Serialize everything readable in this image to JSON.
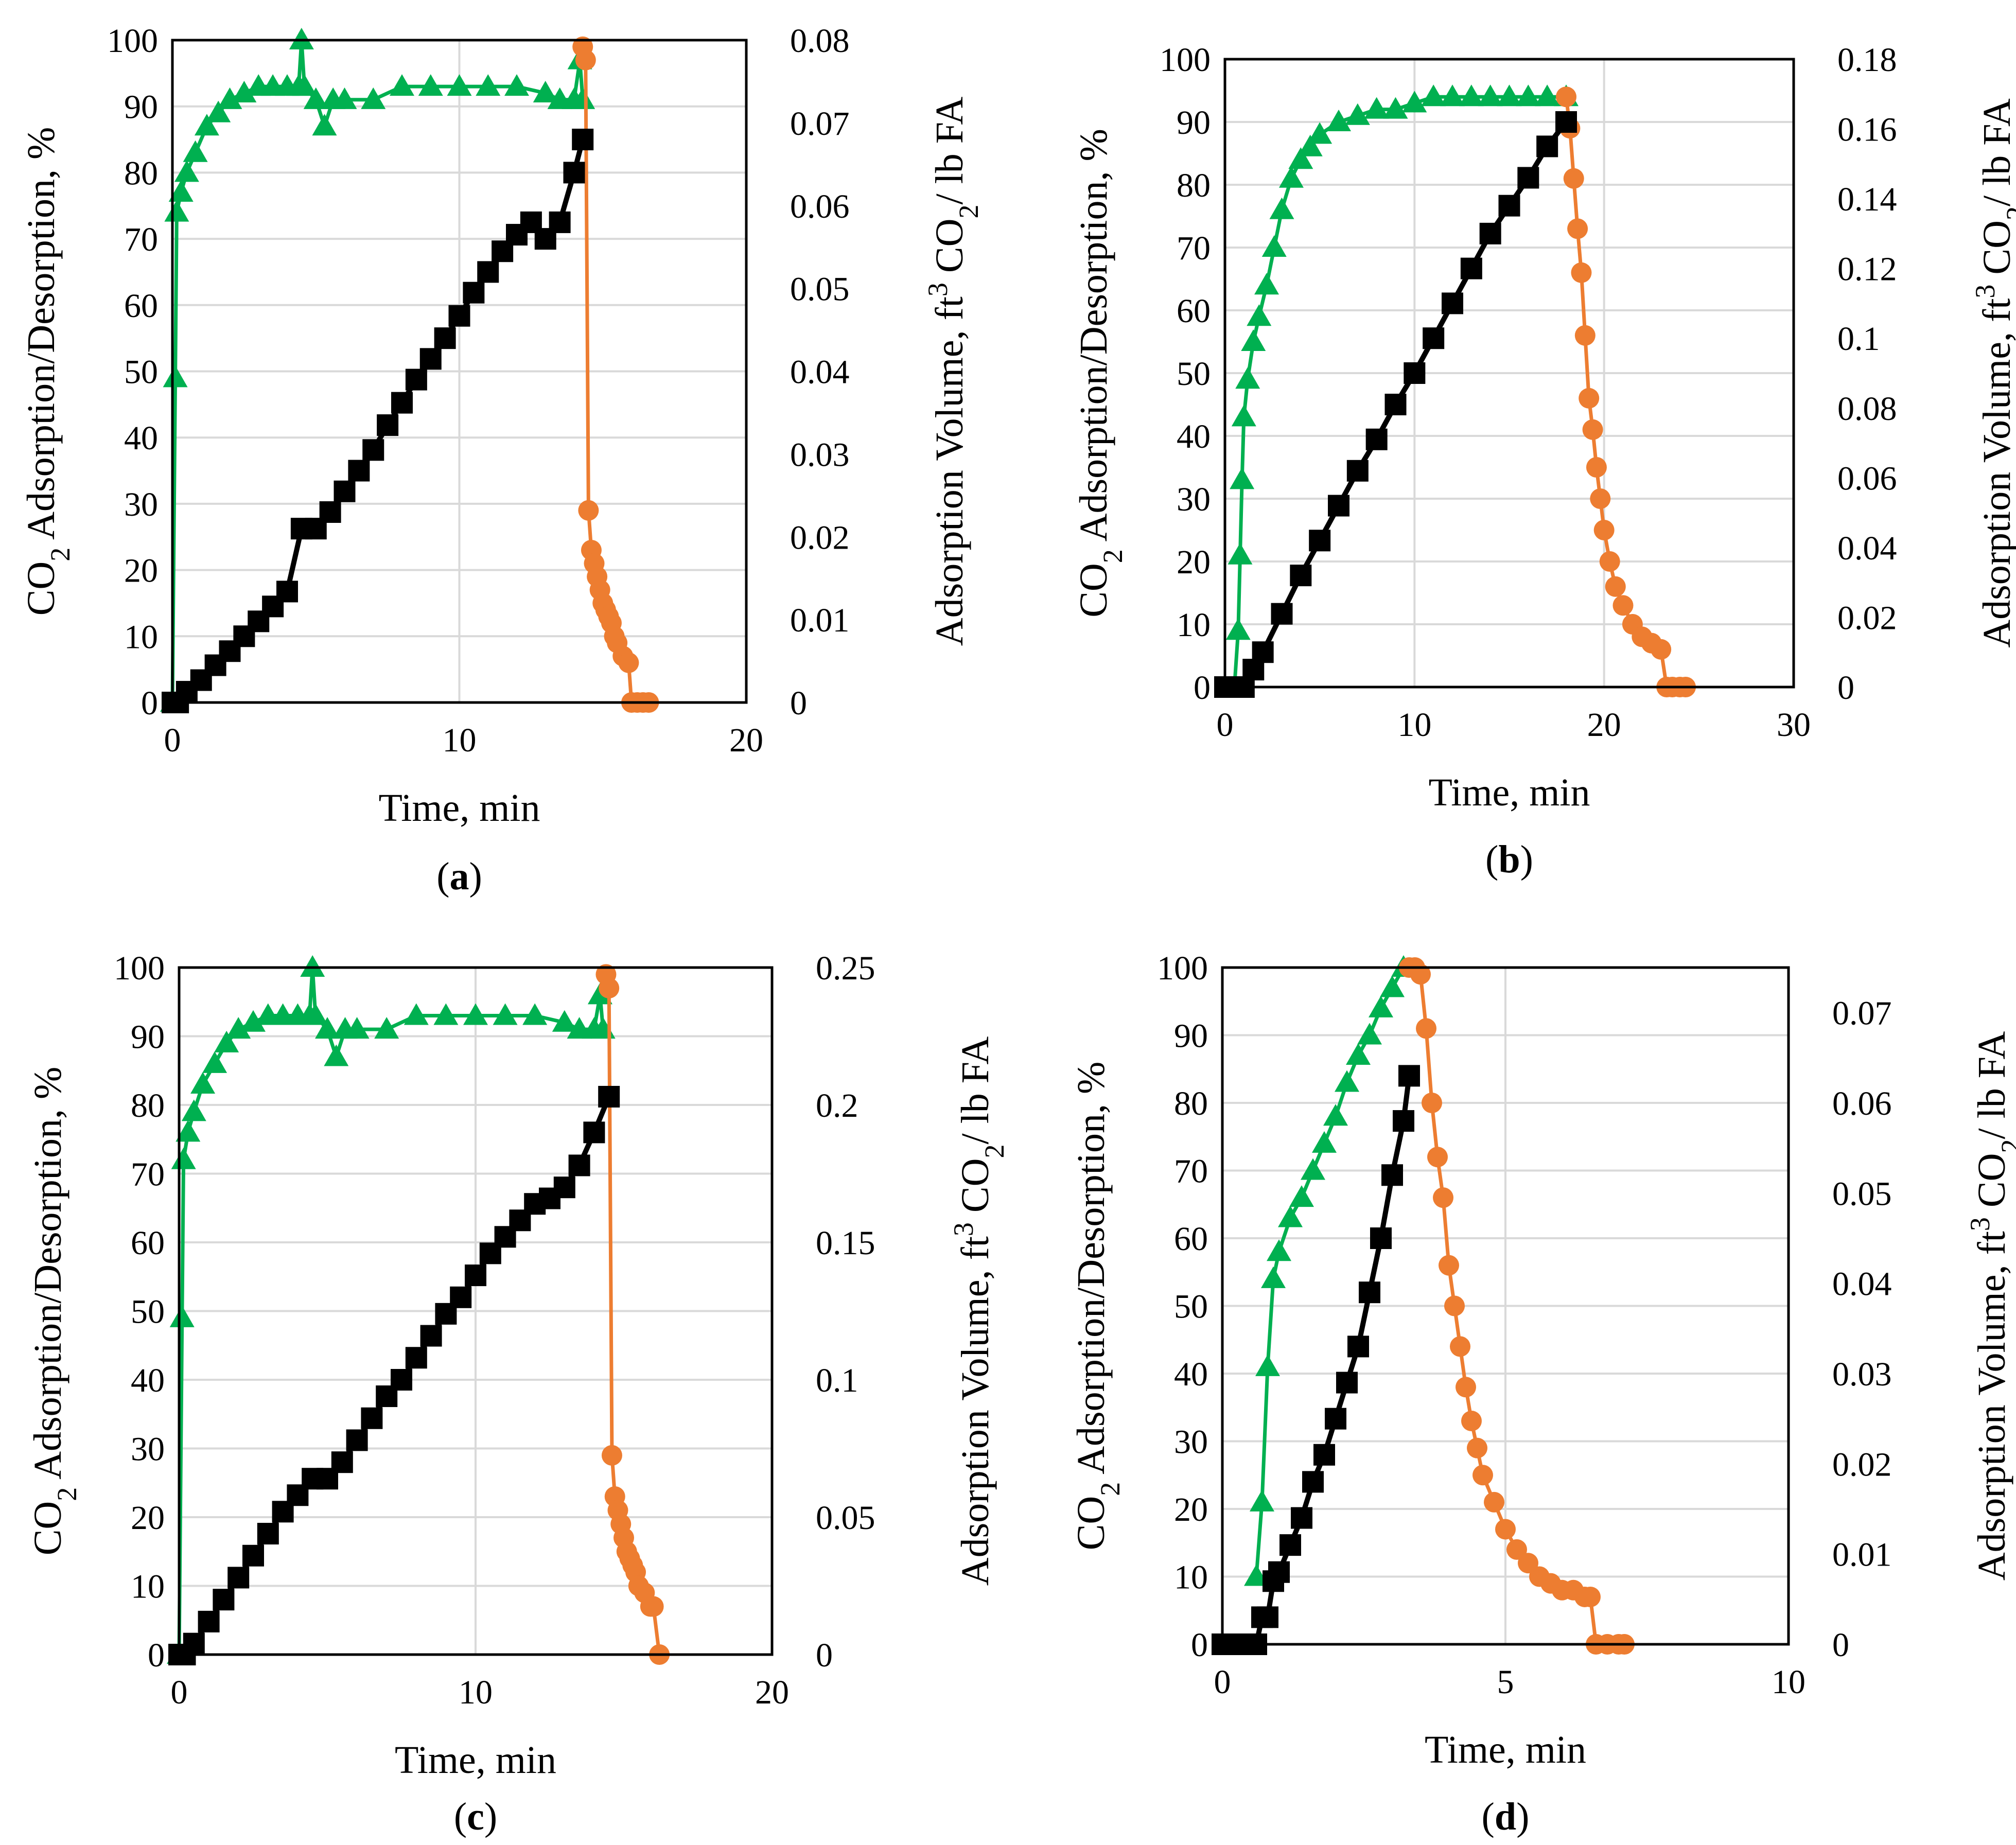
{
  "colors": {
    "adsorption": "#00b050",
    "desorption": "#ed7d31",
    "volume": "#000000",
    "grid": "#d9d9d9"
  },
  "chart_data": [
    {
      "panel": "a",
      "type": "line",
      "label_open": "(",
      "label_letter": "a",
      "label_close": ")",
      "xlabel": "Time, min",
      "ylabel_left": {
        "a": "CO",
        "sub": "2",
        "b": " Adsorption/Desorption, %"
      },
      "ylabel_right": {
        "a": "Adsorption Volume, ft",
        "sup": "3",
        "b": " CO",
        "sub": "2",
        "c": "/ lb FA"
      },
      "xlim": [
        0,
        20
      ],
      "xticks": [
        0,
        10,
        20
      ],
      "ylim_left": [
        0,
        100
      ],
      "yticks_left": [
        0,
        10,
        20,
        30,
        40,
        50,
        60,
        70,
        80,
        90,
        100
      ],
      "ylim_right": [
        0,
        0.08
      ],
      "yticks_right": [
        0,
        0.01,
        0.02,
        0.03,
        0.04,
        0.05,
        0.06,
        0.07,
        0.08
      ],
      "series": [
        {
          "name": "CO2 Adsorption, %",
          "axis": "left",
          "marker": "triangle",
          "x": [
            0,
            0.1,
            0.15,
            0.3,
            0.5,
            0.8,
            1.2,
            1.6,
            2,
            2.5,
            3,
            3.5,
            4,
            4.4,
            4.5,
            4.6,
            5,
            5.3,
            5.6,
            6,
            7,
            8,
            9,
            10,
            11,
            12,
            13,
            13.5,
            14,
            14.2,
            14.3
          ],
          "y": [
            0,
            49,
            74,
            77,
            80,
            83,
            87,
            89,
            91,
            92,
            93,
            93,
            93,
            93,
            100,
            93,
            91,
            87,
            91,
            91,
            91,
            93,
            93,
            93,
            93,
            93,
            92,
            91,
            91,
            97,
            91
          ]
        },
        {
          "name": "CO2 Desorption, %",
          "axis": "left",
          "marker": "circle",
          "x": [
            14.3,
            14.4,
            14.5,
            14.6,
            14.7,
            14.8,
            14.9,
            15,
            15.1,
            15.2,
            15.3,
            15.4,
            15.5,
            15.7,
            15.9,
            16,
            16.2,
            16.4,
            16.6
          ],
          "y": [
            99,
            97,
            29,
            23,
            21,
            19,
            17,
            15,
            14,
            13,
            12,
            10,
            9,
            7,
            6,
            0,
            0,
            0,
            0
          ]
        },
        {
          "name": "Adsorption Volume, ft3 CO2/lb FA",
          "axis": "right",
          "marker": "square",
          "x": [
            0,
            0.2,
            0.5,
            1,
            1.5,
            2,
            2.5,
            3,
            3.5,
            4,
            4.5,
            5,
            5.5,
            6,
            6.5,
            7,
            7.5,
            8,
            8.5,
            9,
            9.5,
            10,
            10.5,
            11,
            11.5,
            12,
            12.5,
            13,
            13.5,
            14,
            14.3
          ],
          "y": [
            0,
            0,
            0.0013,
            0.0027,
            0.0045,
            0.0062,
            0.008,
            0.0098,
            0.0116,
            0.0134,
            0.021,
            0.021,
            0.023,
            0.0255,
            0.028,
            0.0305,
            0.0335,
            0.0362,
            0.039,
            0.0415,
            0.044,
            0.0467,
            0.0495,
            0.052,
            0.0545,
            0.0565,
            0.058,
            0.056,
            0.058,
            0.064,
            0.068
          ]
        }
      ]
    },
    {
      "panel": "b",
      "type": "line",
      "label_open": "(",
      "label_letter": "b",
      "label_close": ")",
      "xlabel": "Time, min",
      "ylabel_left": {
        "a": "CO",
        "sub": "2",
        "b": " Adsorption/Desorption, %"
      },
      "ylabel_right": {
        "a": "Adsorption Volume, ft",
        "sup": "3",
        "b": " CO",
        "sub": "2",
        "c": "/ lb FA"
      },
      "xlim": [
        0,
        30
      ],
      "xticks": [
        0,
        10,
        20,
        30
      ],
      "ylim_left": [
        0,
        100
      ],
      "yticks_left": [
        0,
        10,
        20,
        30,
        40,
        50,
        60,
        70,
        80,
        90,
        100
      ],
      "ylim_right": [
        0,
        0.18
      ],
      "yticks_right": [
        0,
        0.02,
        0.04,
        0.06,
        0.08,
        0.1,
        0.12,
        0.14,
        0.16,
        0.18
      ],
      "series": [
        {
          "name": "CO2 Adsorption, %",
          "axis": "left",
          "marker": "triangle",
          "x": [
            0.5,
            0.7,
            0.8,
            0.9,
            1,
            1.2,
            1.5,
            1.8,
            2.2,
            2.6,
            3,
            3.5,
            4,
            4.5,
            5,
            6,
            7,
            8,
            9,
            10,
            11,
            12,
            13,
            14,
            15,
            16,
            17,
            18
          ],
          "y": [
            0,
            9,
            21,
            33,
            43,
            49,
            55,
            59,
            64,
            70,
            76,
            81,
            84,
            86,
            88,
            90,
            91,
            92,
            92,
            93,
            94,
            94,
            94,
            94,
            94,
            94,
            94,
            94
          ]
        },
        {
          "name": "CO2 Desorption, %",
          "axis": "left",
          "marker": "circle",
          "x": [
            18,
            18.2,
            18.4,
            18.6,
            18.8,
            19,
            19.2,
            19.4,
            19.6,
            19.8,
            20,
            20.3,
            20.6,
            21,
            21.5,
            22,
            22.5,
            23,
            23.3,
            23.6,
            24,
            24.3
          ],
          "y": [
            94,
            89,
            81,
            73,
            66,
            56,
            46,
            41,
            35,
            30,
            25,
            20,
            16,
            13,
            10,
            8,
            7,
            6,
            0,
            0,
            0,
            0
          ]
        },
        {
          "name": "Adsorption Volume, ft3 CO2/lb FA",
          "axis": "right",
          "marker": "square",
          "x": [
            0,
            0.5,
            1,
            1.5,
            2,
            3,
            4,
            5,
            6,
            7,
            8,
            9,
            10,
            11,
            12,
            13,
            14,
            15,
            16,
            17,
            18
          ],
          "y": [
            0,
            0,
            0,
            0.005,
            0.01,
            0.021,
            0.032,
            0.042,
            0.052,
            0.062,
            0.071,
            0.081,
            0.09,
            0.1,
            0.11,
            0.12,
            0.13,
            0.138,
            0.146,
            0.155,
            0.162
          ]
        }
      ]
    },
    {
      "panel": "c",
      "type": "line",
      "label_open": "(",
      "label_letter": "c",
      "label_close": ")",
      "xlabel": "Time, min",
      "ylabel_left": {
        "a": "CO",
        "sub": "2",
        "b": " Adsorption/Desorption, %"
      },
      "ylabel_right": {
        "a": "Adsorption Volume, ft",
        "sup": "3",
        "b": " CO",
        "sub": "2",
        "c": "/ lb FA"
      },
      "xlim": [
        0,
        20
      ],
      "xticks": [
        0,
        10,
        20
      ],
      "ylim_left": [
        0,
        100
      ],
      "yticks_left": [
        0,
        10,
        20,
        30,
        40,
        50,
        60,
        70,
        80,
        90,
        100
      ],
      "ylim_right": [
        0,
        0.25
      ],
      "yticks_right": [
        0,
        0.05,
        0.1,
        0.15,
        0.2,
        0.25
      ],
      "series": [
        {
          "name": "CO2 Adsorption, %",
          "axis": "left",
          "marker": "triangle",
          "x": [
            0,
            0.1,
            0.15,
            0.3,
            0.5,
            0.8,
            1.2,
            1.6,
            2,
            2.5,
            3,
            3.5,
            4,
            4.4,
            4.5,
            4.6,
            5,
            5.3,
            5.6,
            6,
            7,
            8,
            9,
            10,
            11,
            12,
            13,
            13.5,
            14,
            14.2,
            14.3
          ],
          "y": [
            0,
            49,
            72,
            76,
            79,
            83,
            86,
            89,
            91,
            92,
            93,
            93,
            93,
            93,
            100,
            93,
            91,
            87,
            91,
            91,
            91,
            93,
            93,
            93,
            93,
            93,
            92,
            91,
            91,
            96,
            91
          ]
        },
        {
          "name": "CO2 Desorption, %",
          "axis": "left",
          "marker": "circle",
          "x": [
            14.4,
            14.5,
            14.6,
            14.7,
            14.8,
            14.9,
            15,
            15.1,
            15.2,
            15.3,
            15.4,
            15.5,
            15.7,
            15.9,
            16,
            16.2
          ],
          "y": [
            99,
            97,
            29,
            23,
            21,
            19,
            17,
            15,
            14,
            13,
            12,
            10,
            9,
            7,
            7,
            0
          ]
        },
        {
          "name": "Adsorption Volume, ft3 CO2/lb FA",
          "axis": "right",
          "marker": "square",
          "x": [
            0,
            0.2,
            0.5,
            1,
            1.5,
            2,
            2.5,
            3,
            3.5,
            4,
            4.5,
            5,
            5.5,
            6,
            6.5,
            7,
            7.5,
            8,
            8.5,
            9,
            9.5,
            10,
            10.5,
            11,
            11.5,
            12,
            12.5,
            13,
            13.5,
            14,
            14.5
          ],
          "y": [
            0,
            0,
            0.004,
            0.012,
            0.02,
            0.028,
            0.036,
            0.044,
            0.052,
            0.058,
            0.064,
            0.064,
            0.07,
            0.078,
            0.086,
            0.094,
            0.1,
            0.108,
            0.116,
            0.124,
            0.13,
            0.138,
            0.146,
            0.152,
            0.158,
            0.164,
            0.166,
            0.17,
            0.178,
            0.19,
            0.203
          ]
        }
      ]
    },
    {
      "panel": "d",
      "type": "line",
      "label_open": "(",
      "label_letter": "d",
      "label_close": ")",
      "xlabel": "Time, min",
      "ylabel_left": {
        "a": "CO",
        "sub": "2",
        "b": " Adsorption/Desorption, %"
      },
      "ylabel_right": {
        "a": "Adsorption Volume, ft",
        "sup": "3",
        "b": " CO",
        "sub": "2",
        "c": "/ lb FA"
      },
      "xlim": [
        0,
        10
      ],
      "xticks": [
        0,
        5,
        10
      ],
      "ylim_left": [
        0,
        100
      ],
      "yticks_left": [
        0,
        10,
        20,
        30,
        40,
        50,
        60,
        70,
        80,
        90,
        100
      ],
      "ylim_right": [
        0,
        0.075
      ],
      "yticks_right": [
        0,
        0.01,
        0.02,
        0.03,
        0.04,
        0.05,
        0.06,
        0.07
      ],
      "series": [
        {
          "name": "CO2 Adsorption, %",
          "axis": "left",
          "marker": "triangle",
          "x": [
            0.6,
            0.7,
            0.8,
            0.9,
            1,
            1.2,
            1.4,
            1.6,
            1.8,
            2,
            2.2,
            2.4,
            2.6,
            2.8,
            3,
            3.2
          ],
          "y": [
            10,
            21,
            41,
            54,
            58,
            63,
            66,
            70,
            74,
            78,
            83,
            87,
            90,
            94,
            97,
            100
          ]
        },
        {
          "name": "CO2 Desorption, %",
          "axis": "left",
          "marker": "circle",
          "x": [
            3.3,
            3.4,
            3.5,
            3.6,
            3.7,
            3.8,
            3.9,
            4,
            4.1,
            4.2,
            4.3,
            4.4,
            4.5,
            4.6,
            4.8,
            5,
            5.2,
            5.4,
            5.6,
            5.8,
            6,
            6.2,
            6.4,
            6.5,
            6.6,
            6.8,
            7,
            7.1
          ],
          "y": [
            100,
            100,
            99,
            91,
            80,
            72,
            66,
            56,
            50,
            44,
            38,
            33,
            29,
            25,
            21,
            17,
            14,
            12,
            10,
            9,
            8,
            8,
            7,
            7,
            0,
            0,
            0,
            0
          ]
        },
        {
          "name": "Adsorption Volume, ft3 CO2/lb FA",
          "axis": "right",
          "marker": "square",
          "x": [
            0,
            0.3,
            0.6,
            0.7,
            0.8,
            0.9,
            1,
            1.2,
            1.4,
            1.6,
            1.8,
            2,
            2.2,
            2.4,
            2.6,
            2.8,
            3,
            3.2,
            3.3
          ],
          "y": [
            0,
            0,
            0,
            0.003,
            0.003,
            0.007,
            0.008,
            0.011,
            0.014,
            0.018,
            0.021,
            0.025,
            0.029,
            0.033,
            0.039,
            0.045,
            0.052,
            0.058,
            0.063
          ]
        }
      ]
    }
  ]
}
